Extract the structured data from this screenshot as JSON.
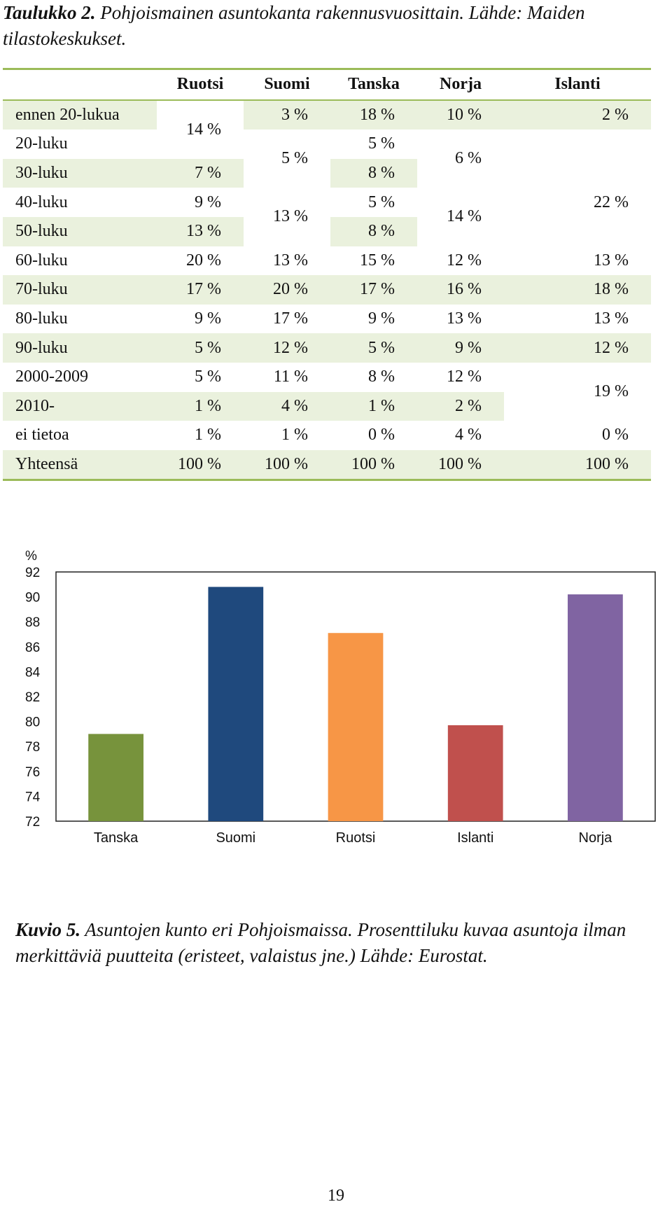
{
  "table_caption": {
    "lead": "Taulukko 2.",
    "text": " Pohjoismainen asuntokanta rakennusvuosittain. Lähde: Maiden tilastokeskukset."
  },
  "table": {
    "columns": [
      "",
      "Ruotsi",
      "Suomi",
      "Tanska",
      "Norja",
      "Islanti"
    ],
    "rows": [
      [
        "ennen 20-lukua",
        "14 %",
        "3 %",
        "18 %",
        "10 %",
        "2 %"
      ],
      [
        "20-luku",
        "",
        "5 %",
        "5 %",
        "6 %",
        ""
      ],
      [
        "30-luku",
        "7 %",
        "",
        "8 %",
        "",
        "22 %"
      ],
      [
        "40-luku",
        "9 %",
        "13 %",
        "5 %",
        "14 %",
        ""
      ],
      [
        "50-luku",
        "13 %",
        "",
        "8 %",
        "",
        ""
      ],
      [
        "60-luku",
        "20 %",
        "13 %",
        "15 %",
        "12 %",
        "13 %"
      ],
      [
        "70-luku",
        "17 %",
        "20 %",
        "17 %",
        "16 %",
        "18 %"
      ],
      [
        "80-luku",
        "9 %",
        "17 %",
        "9 %",
        "13 %",
        "13 %"
      ],
      [
        "90-luku",
        "5 %",
        "12 %",
        "5 %",
        "9 %",
        "12 %"
      ],
      [
        "2000-2009",
        "5 %",
        "11 %",
        "8 %",
        "12 %",
        "19 %"
      ],
      [
        "2010-",
        "1 %",
        "4 %",
        "1 %",
        "2 %",
        ""
      ],
      [
        "ei tietoa",
        "1 %",
        "1 %",
        "0 %",
        "4 %",
        "0 %"
      ],
      [
        "Yhteensä",
        "100 %",
        "100 %",
        "100 %",
        "100 %",
        "100 %"
      ]
    ]
  },
  "chart_data": {
    "type": "bar",
    "ylabel": "%",
    "ylim": [
      72,
      92
    ],
    "yticks": [
      92,
      90,
      88,
      86,
      84,
      82,
      80,
      78,
      76,
      74,
      72
    ],
    "categories": [
      "Tanska",
      "Suomi",
      "Ruotsi",
      "Islanti",
      "Norja"
    ],
    "values": [
      79.0,
      90.8,
      87.1,
      79.7,
      90.2
    ],
    "colors": [
      "#77933c",
      "#1f497d",
      "#f79646",
      "#c0504d",
      "#8064a2"
    ],
    "grid": false,
    "legend": "none"
  },
  "figure_caption": {
    "lead": "Kuvio 5.",
    "text": " Asuntojen kunto eri Pohjoismaissa. Prosenttiluku kuvaa asuntoja ilman merkittäviä puutteita (eristeet, valaistus jne.) Lähde: Eurostat."
  },
  "page_number": "19"
}
